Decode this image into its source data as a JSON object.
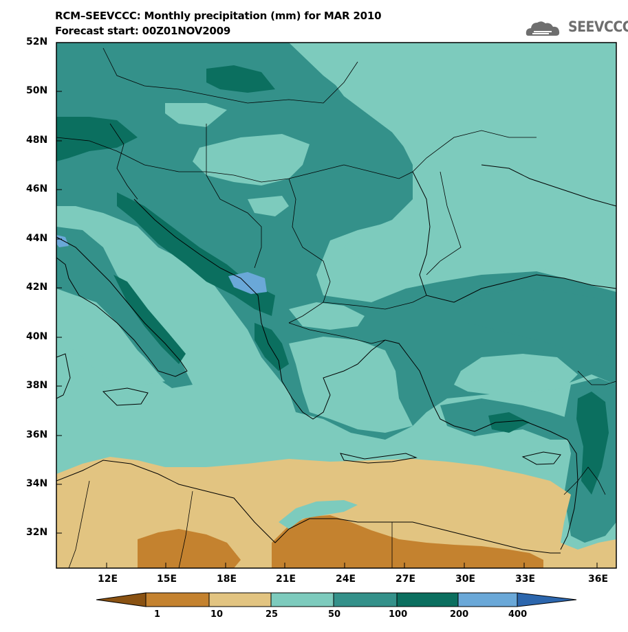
{
  "title": {
    "line1": "RCM–SEEVCCC: Monthly precipitation (mm) for MAR 2010",
    "line2": "Forecast start: 00Z01NOV2009"
  },
  "logo": {
    "text": "SEEVCCC",
    "icon": "cloud-icon"
  },
  "map": {
    "lat_labels": [
      "52N",
      "50N",
      "48N",
      "46N",
      "44N",
      "42N",
      "40N",
      "38N",
      "36N",
      "34N",
      "32N"
    ],
    "lon_labels": [
      "12E",
      "15E",
      "18E",
      "21E",
      "24E",
      "27E",
      "30E",
      "33E",
      "36E"
    ]
  },
  "colorbar": {
    "levels": [
      "1",
      "10",
      "25",
      "50",
      "100",
      "200",
      "400"
    ],
    "colors": [
      "#8a5212",
      "#c4822f",
      "#e2c481",
      "#7dcbbd",
      "#34918a",
      "#0b6f5f",
      "#6aa8d8",
      "#2c66ad"
    ]
  }
}
